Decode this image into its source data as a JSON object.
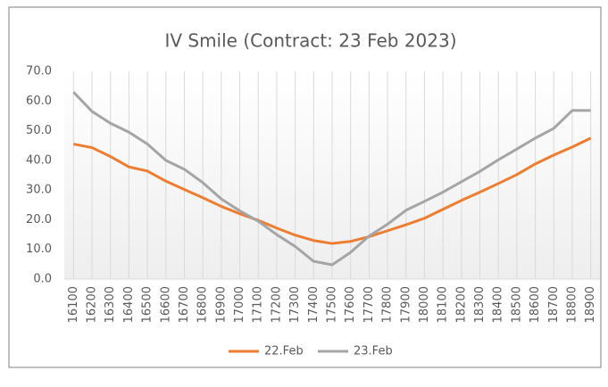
{
  "chart_data": {
    "type": "line",
    "title": "IV Smile (Contract: 23 Feb 2023)",
    "categories": [
      "16100",
      "16200",
      "16300",
      "16400",
      "16500",
      "16600",
      "16700",
      "16800",
      "16900",
      "17000",
      "17100",
      "17200",
      "17300",
      "17400",
      "17500",
      "17600",
      "17700",
      "17800",
      "17900",
      "18000",
      "18100",
      "18200",
      "18300",
      "18400",
      "18500",
      "18600",
      "18700",
      "18800",
      "18900"
    ],
    "series": [
      {
        "name": "22.Feb",
        "color": "#ed7d31",
        "values": [
          45.5,
          44.3,
          41.3,
          37.8,
          36.4,
          33.0,
          30.2,
          27.4,
          24.5,
          22.0,
          19.8,
          17.2,
          14.8,
          13.0,
          12.0,
          12.7,
          14.3,
          16.3,
          18.3,
          20.5,
          23.5,
          26.5,
          29.3,
          32.2,
          35.2,
          38.8,
          41.8,
          44.5,
          47.5
        ]
      },
      {
        "name": "23.Feb",
        "color": "#a5a5a5",
        "values": [
          63.0,
          56.5,
          52.5,
          49.5,
          45.5,
          40.0,
          37.0,
          32.5,
          27.0,
          23.0,
          19.5,
          15.0,
          11.0,
          6.0,
          4.8,
          9.0,
          14.5,
          18.5,
          23.2,
          26.2,
          29.3,
          32.8,
          36.3,
          40.2,
          43.8,
          47.5,
          50.8,
          56.8,
          56.8
        ]
      }
    ],
    "ylim": [
      0,
      70
    ],
    "yticks": [
      {
        "value": 0,
        "label": "0.0"
      },
      {
        "value": 10,
        "label": "10.0"
      },
      {
        "value": 20,
        "label": "20.0"
      },
      {
        "value": 30,
        "label": "30.0"
      },
      {
        "value": 40,
        "label": "40.0"
      },
      {
        "value": 50,
        "label": "50.0"
      },
      {
        "value": 60,
        "label": "60.0"
      },
      {
        "value": 70,
        "label": "70.0"
      }
    ],
    "xgrid": true,
    "legend": "bottom"
  }
}
